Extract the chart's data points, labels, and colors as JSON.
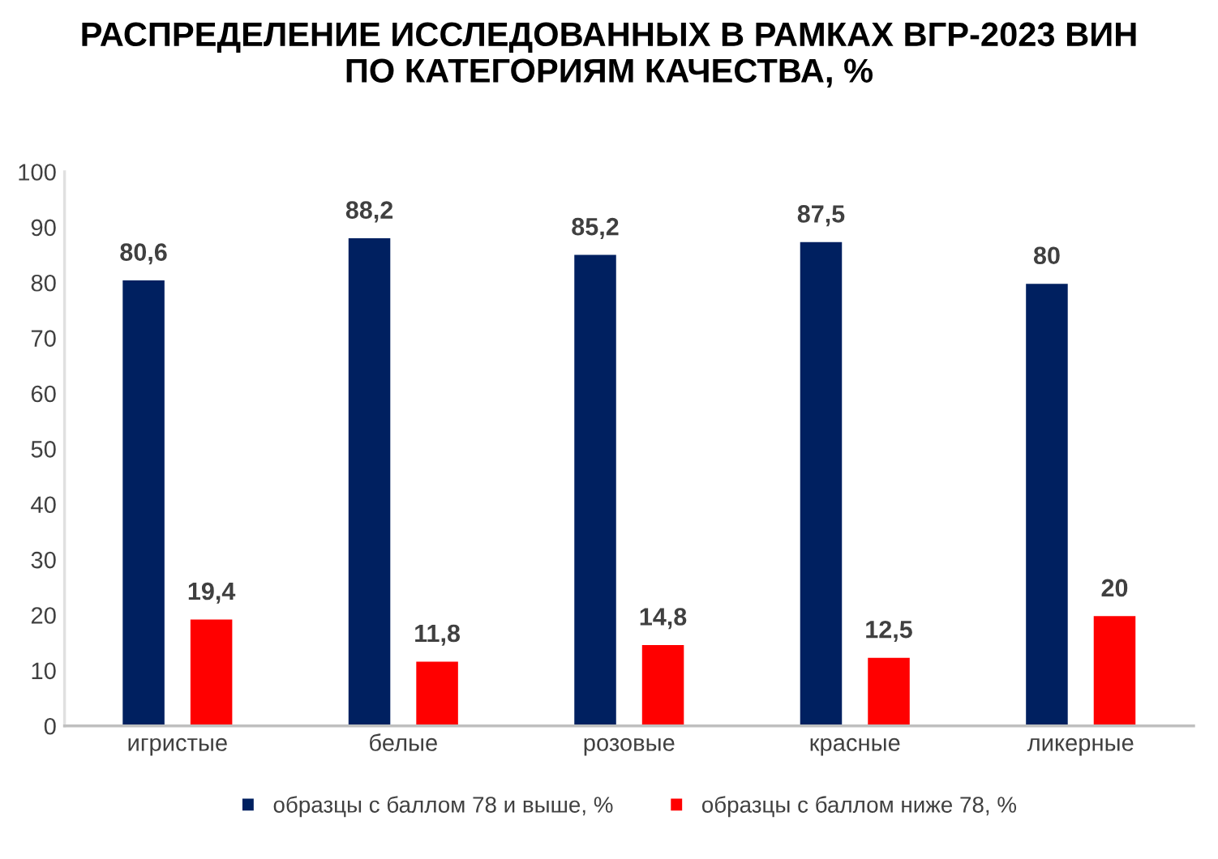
{
  "chart_data": {
    "type": "bar",
    "title": "РАСПРЕДЕЛЕНИЕ ИССЛЕДОВАННЫХ В РАМКАХ ВГР-2023 ВИН\nПО КАТЕГОРИЯМ КАЧЕСТВА, %",
    "categories": [
      "игристые",
      "белые",
      "розовые",
      "красные",
      "ликерные"
    ],
    "series": [
      {
        "name": "образцы с баллом 78 и выше, %",
        "color": "#002060",
        "values": [
          80.6,
          88.2,
          85.2,
          87.5,
          80
        ],
        "value_labels": [
          "80,6",
          "88,2",
          "85,2",
          "87,5",
          "80"
        ]
      },
      {
        "name": "образцы с баллом ниже 78, %",
        "color": "#ff0000",
        "values": [
          19.4,
          11.8,
          14.8,
          12.5,
          20
        ],
        "value_labels": [
          "19,4",
          "11,8",
          "14,8",
          "12,5",
          "20"
        ]
      }
    ],
    "ylim": [
      0,
      100
    ],
    "yticks": [
      0,
      10,
      20,
      30,
      40,
      50,
      60,
      70,
      80,
      90,
      100
    ],
    "grid": false,
    "legend": "bottom"
  }
}
